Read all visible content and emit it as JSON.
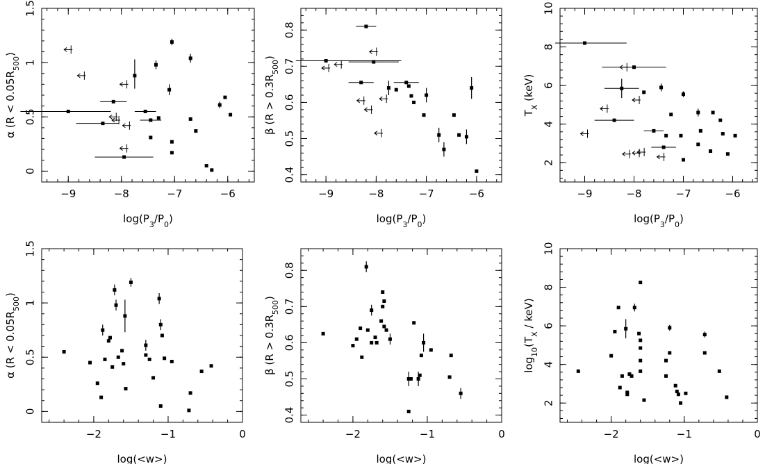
{
  "chart_data": [
    {
      "type": "scatter",
      "panel": "top-left",
      "xlabel": "log(P_3/P_0)",
      "ylabel": "α (R < 0.05R_500)",
      "xlim": [
        -9.5,
        -5.5
      ],
      "ylim": [
        -0.1,
        1.5
      ],
      "xticks": [
        -9,
        -8,
        -7,
        -6
      ],
      "yticks": [
        0,
        0.5,
        1,
        1.5
      ],
      "xtick_labels": [
        "−9",
        "−8",
        "−7",
        "−6"
      ],
      "ytick_labels": [
        "0",
        "0.5",
        "1",
        "1.5"
      ],
      "points": [
        {
          "x": -9.0,
          "y": 0.55,
          "xerr": [
            0.9,
            0.8
          ]
        },
        {
          "x": -8.15,
          "y": 0.64,
          "xerr": [
            0.25,
            0.25
          ]
        },
        {
          "x": -8.35,
          "y": 0.44,
          "xerr": [
            0.5,
            0.3
          ]
        },
        {
          "x": -7.95,
          "y": 0.13,
          "xerr": [
            0.55,
            0.55
          ]
        },
        {
          "x": -7.75,
          "y": 0.88,
          "yerr": [
            0.12,
            0.15
          ]
        },
        {
          "x": -7.55,
          "y": 0.55,
          "xerr": [
            0.2,
            0.2
          ]
        },
        {
          "x": -7.45,
          "y": 0.47,
          "xerr": [
            0.2,
            0.2
          ]
        },
        {
          "x": -7.35,
          "y": 0.98,
          "yerr": [
            0.04,
            0.04
          ]
        },
        {
          "x": -7.3,
          "y": 0.49
        },
        {
          "x": -7.45,
          "y": 0.31
        },
        {
          "x": -7.1,
          "y": 0.75,
          "yerr": [
            0.05,
            0.05
          ]
        },
        {
          "x": -7.05,
          "y": 1.19,
          "yerr": [
            0.03,
            0.03
          ]
        },
        {
          "x": -7.05,
          "y": 0.27
        },
        {
          "x": -7.05,
          "y": 0.17
        },
        {
          "x": -6.7,
          "y": 1.04,
          "yerr": [
            0.04,
            0.04
          ]
        },
        {
          "x": -6.7,
          "y": 0.48
        },
        {
          "x": -6.6,
          "y": 0.37
        },
        {
          "x": -6.4,
          "y": 0.05
        },
        {
          "x": -6.3,
          "y": 0.01
        },
        {
          "x": -6.15,
          "y": 0.61,
          "yerr": [
            0.03,
            0.03
          ]
        },
        {
          "x": -6.05,
          "y": 0.68
        },
        {
          "x": -5.95,
          "y": 0.52
        }
      ],
      "upper_limits": [
        {
          "x": -9.0,
          "y": 1.12
        },
        {
          "x": -8.75,
          "y": 0.88
        },
        {
          "x": -7.95,
          "y": 0.8
        },
        {
          "x": -8.15,
          "y": 0.5
        },
        {
          "x": -8.1,
          "y": 0.47
        },
        {
          "x": -7.9,
          "y": 0.42
        },
        {
          "x": -7.95,
          "y": 0.21
        }
      ]
    },
    {
      "type": "scatter",
      "panel": "top-middle",
      "xlabel": "log(P_3/P_0)",
      "ylabel": "β (R > 0.3R_500)",
      "xlim": [
        -9.5,
        -5.5
      ],
      "ylim": [
        0.38,
        0.86
      ],
      "xticks": [
        -9,
        -8,
        -7,
        -6
      ],
      "yticks": [
        0.4,
        0.5,
        0.6,
        0.7,
        0.8
      ],
      "xtick_labels": [
        "−9",
        "−8",
        "−7",
        "−6"
      ],
      "ytick_labels": [
        "0.4",
        "0.5",
        "0.6",
        "0.7",
        "0.8"
      ],
      "points": [
        {
          "x": -9.0,
          "y": 0.715,
          "xerr": [
            0.6,
            1.5
          ]
        },
        {
          "x": -8.2,
          "y": 0.81,
          "xerr": [
            0.2,
            0.2
          ]
        },
        {
          "x": -8.05,
          "y": 0.712,
          "xerr": [
            0.5,
            0.5
          ]
        },
        {
          "x": -8.3,
          "y": 0.655,
          "xerr": [
            0.25,
            0.25
          ]
        },
        {
          "x": -7.75,
          "y": 0.64,
          "yerr": [
            0.02,
            0.02
          ]
        },
        {
          "x": -7.6,
          "y": 0.635
        },
        {
          "x": -7.4,
          "y": 0.655,
          "xerr": [
            0.25,
            0.25
          ]
        },
        {
          "x": -7.35,
          "y": 0.645
        },
        {
          "x": -7.3,
          "y": 0.618
        },
        {
          "x": -7.25,
          "y": 0.6
        },
        {
          "x": -7.0,
          "y": 0.62,
          "yerr": [
            0.02,
            0.02
          ]
        },
        {
          "x": -7.05,
          "y": 0.565
        },
        {
          "x": -6.75,
          "y": 0.51,
          "yerr": [
            0.02,
            0.02
          ]
        },
        {
          "x": -6.45,
          "y": 0.565
        },
        {
          "x": -6.35,
          "y": 0.51
        },
        {
          "x": -6.2,
          "y": 0.505,
          "yerr": [
            0.02,
            0.02
          ]
        },
        {
          "x": -6.65,
          "y": 0.47,
          "yerr": [
            0.02,
            0.02
          ]
        },
        {
          "x": -6.1,
          "y": 0.64,
          "yerr": [
            0.03,
            0.03
          ]
        },
        {
          "x": -6.0,
          "y": 0.41
        }
      ],
      "upper_limits": [
        {
          "x": -9.0,
          "y": 0.695
        },
        {
          "x": -8.75,
          "y": 0.705
        },
        {
          "x": -8.05,
          "y": 0.74
        },
        {
          "x": -8.3,
          "y": 0.605
        },
        {
          "x": -8.15,
          "y": 0.58
        },
        {
          "x": -7.85,
          "y": 0.61
        },
        {
          "x": -7.95,
          "y": 0.515
        }
      ]
    },
    {
      "type": "scatter",
      "panel": "top-right",
      "xlabel": "log(P_3/P_0)",
      "ylabel": "T_X (keV)",
      "xlim": [
        -9.5,
        -5.5
      ],
      "ylim": [
        1.0,
        10.0
      ],
      "xticks": [
        -9,
        -8,
        -7,
        -6
      ],
      "yticks": [
        2,
        4,
        6,
        8,
        10
      ],
      "xtick_labels": [
        "−9",
        "−8",
        "−7",
        "−6"
      ],
      "ytick_labels": [
        "2",
        "4",
        "6",
        "8",
        "10"
      ],
      "points": [
        {
          "x": -9.0,
          "y": 8.2,
          "xerr": [
            0.6,
            0.85
          ]
        },
        {
          "x": -8.0,
          "y": 6.95,
          "xerr": [
            0.65,
            0.65
          ]
        },
        {
          "x": -8.25,
          "y": 5.85,
          "xerr": [
            0.35,
            0.35
          ],
          "yerr": [
            0.5,
            0.5
          ]
        },
        {
          "x": -8.4,
          "y": 4.2,
          "xerr": [
            0.4,
            0.4
          ]
        },
        {
          "x": -7.8,
          "y": 5.65
        },
        {
          "x": -7.6,
          "y": 3.65,
          "xerr": [
            0.2,
            0.2
          ]
        },
        {
          "x": -7.45,
          "y": 5.9,
          "yerr": [
            0.2,
            0.2
          ]
        },
        {
          "x": -7.4,
          "y": 2.8,
          "xerr": [
            0.25,
            0.25
          ]
        },
        {
          "x": -7.35,
          "y": 3.4
        },
        {
          "x": -7.25,
          "y": 4.5
        },
        {
          "x": -7.05,
          "y": 3.4
        },
        {
          "x": -7.0,
          "y": 5.55,
          "yerr": [
            0.15,
            0.15
          ]
        },
        {
          "x": -7.0,
          "y": 2.15
        },
        {
          "x": -6.7,
          "y": 4.6,
          "yerr": [
            0.2,
            0.2
          ]
        },
        {
          "x": -6.65,
          "y": 3.65
        },
        {
          "x": -6.7,
          "y": 2.95
        },
        {
          "x": -6.45,
          "y": 2.6
        },
        {
          "x": -6.4,
          "y": 4.6
        },
        {
          "x": -6.25,
          "y": 4.2
        },
        {
          "x": -6.2,
          "y": 3.5
        },
        {
          "x": -6.1,
          "y": 2.45
        },
        {
          "x": -5.95,
          "y": 3.4
        }
      ],
      "upper_limits": [
        {
          "x": -9.0,
          "y": 3.5
        },
        {
          "x": -8.6,
          "y": 4.8
        },
        {
          "x": -8.2,
          "y": 6.95
        },
        {
          "x": -7.95,
          "y": 5.25
        },
        {
          "x": -8.15,
          "y": 2.45
        },
        {
          "x": -7.95,
          "y": 2.5
        },
        {
          "x": -7.85,
          "y": 2.55
        },
        {
          "x": -7.45,
          "y": 2.3
        }
      ]
    },
    {
      "type": "scatter",
      "panel": "bottom-left",
      "xlabel": "log(<w>)",
      "ylabel": "α (R < 0.05R_500)",
      "xlim": [
        -2.7,
        0.0
      ],
      "ylim": [
        -0.1,
        1.5
      ],
      "xticks": [
        -2,
        -1,
        0
      ],
      "yticks": [
        0,
        0.5,
        1,
        1.5
      ],
      "xtick_labels": [
        "−2",
        "−1",
        "0"
      ],
      "ytick_labels": [
        "0",
        "0.5",
        "1",
        "1.5"
      ],
      "points": [
        {
          "x": -2.4,
          "y": 0.55
        },
        {
          "x": -2.05,
          "y": 0.45
        },
        {
          "x": -1.95,
          "y": 0.26
        },
        {
          "x": -1.9,
          "y": 0.13
        },
        {
          "x": -1.88,
          "y": 0.75,
          "yerr": [
            0.05,
            0.05
          ]
        },
        {
          "x": -1.85,
          "y": 0.48
        },
        {
          "x": -1.8,
          "y": 0.65
        },
        {
          "x": -1.78,
          "y": 0.68
        },
        {
          "x": -1.75,
          "y": 0.41
        },
        {
          "x": -1.72,
          "y": 1.12,
          "yerr": [
            0.05,
            0.05
          ]
        },
        {
          "x": -1.7,
          "y": 0.98,
          "yerr": [
            0.05,
            0.05
          ]
        },
        {
          "x": -1.67,
          "y": 0.5
        },
        {
          "x": -1.62,
          "y": 0.56
        },
        {
          "x": -1.58,
          "y": 0.88,
          "yerr": [
            0.15,
            0.15
          ]
        },
        {
          "x": -1.6,
          "y": 0.44
        },
        {
          "x": -1.57,
          "y": 0.21
        },
        {
          "x": -1.5,
          "y": 1.19,
          "yerr": [
            0.04,
            0.04
          ]
        },
        {
          "x": -1.3,
          "y": 0.61,
          "yerr": [
            0.05,
            0.05
          ]
        },
        {
          "x": -1.3,
          "y": 0.52
        },
        {
          "x": -1.25,
          "y": 0.48
        },
        {
          "x": -1.2,
          "y": 0.31
        },
        {
          "x": -1.12,
          "y": 1.04,
          "yerr": [
            0.05,
            0.05
          ]
        },
        {
          "x": -1.1,
          "y": 0.8,
          "yerr": [
            0.05,
            0.05
          ]
        },
        {
          "x": -1.08,
          "y": 0.7
        },
        {
          "x": -1.1,
          "y": 0.05
        },
        {
          "x": -1.05,
          "y": 0.49
        },
        {
          "x": -0.95,
          "y": 0.46
        },
        {
          "x": -0.7,
          "y": 0.17
        },
        {
          "x": -0.72,
          "y": 0.01
        },
        {
          "x": -0.55,
          "y": 0.37
        },
        {
          "x": -0.42,
          "y": 0.42
        }
      ]
    },
    {
      "type": "scatter",
      "panel": "bottom-middle",
      "xlabel": "log(<w>)",
      "ylabel": "β (R > 0.3R_500)",
      "xlim": [
        -2.7,
        0.0
      ],
      "ylim": [
        0.38,
        0.86
      ],
      "xticks": [
        -2,
        -1,
        0
      ],
      "yticks": [
        0.4,
        0.5,
        0.6,
        0.7,
        0.8
      ],
      "xtick_labels": [
        "−2",
        "−1",
        "0"
      ],
      "ytick_labels": [
        "0.4",
        "0.5",
        "0.6",
        "0.7",
        "0.8"
      ],
      "points": [
        {
          "x": -2.4,
          "y": 0.625
        },
        {
          "x": -2.0,
          "y": 0.592
        },
        {
          "x": -1.95,
          "y": 0.61
        },
        {
          "x": -1.9,
          "y": 0.64
        },
        {
          "x": -1.88,
          "y": 0.56
        },
        {
          "x": -1.82,
          "y": 0.81,
          "yerr": [
            0.015,
            0.015
          ]
        },
        {
          "x": -1.8,
          "y": 0.635
        },
        {
          "x": -1.75,
          "y": 0.69,
          "yerr": [
            0.015,
            0.015
          ]
        },
        {
          "x": -1.75,
          "y": 0.6
        },
        {
          "x": -1.7,
          "y": 0.615
        },
        {
          "x": -1.68,
          "y": 0.6
        },
        {
          "x": -1.62,
          "y": 0.66
        },
        {
          "x": -1.6,
          "y": 0.7
        },
        {
          "x": -1.58,
          "y": 0.715
        },
        {
          "x": -1.6,
          "y": 0.74
        },
        {
          "x": -1.58,
          "y": 0.645
        },
        {
          "x": -1.55,
          "y": 0.635
        },
        {
          "x": -1.5,
          "y": 0.61,
          "yerr": [
            0.015,
            0.015
          ]
        },
        {
          "x": -1.25,
          "y": 0.5,
          "yerr": [
            0.02,
            0.02
          ]
        },
        {
          "x": -1.22,
          "y": 0.5
        },
        {
          "x": -1.25,
          "y": 0.41
        },
        {
          "x": -1.18,
          "y": 0.655
        },
        {
          "x": -1.12,
          "y": 0.5,
          "yerr": [
            0.02,
            0.02
          ]
        },
        {
          "x": -1.1,
          "y": 0.51
        },
        {
          "x": -1.08,
          "y": 0.565
        },
        {
          "x": -1.05,
          "y": 0.6,
          "yerr": [
            0.025,
            0.025
          ]
        },
        {
          "x": -0.95,
          "y": 0.58
        },
        {
          "x": -0.7,
          "y": 0.505
        },
        {
          "x": -0.68,
          "y": 0.565
        },
        {
          "x": -0.55,
          "y": 0.46,
          "yerr": [
            0.015,
            0.015
          ]
        }
      ]
    },
    {
      "type": "scatter",
      "panel": "bottom-right",
      "xlabel": "log(<w>)",
      "ylabel": "log_10(T_X / keV)",
      "xlim": [
        -2.7,
        0.0
      ],
      "ylim": [
        1.0,
        10.0
      ],
      "xticks": [
        -2,
        -1,
        0
      ],
      "yticks": [
        2,
        4,
        6,
        8,
        10
      ],
      "xtick_labels": [
        "−2",
        "−1",
        "0"
      ],
      "ytick_labels": [
        "2",
        "4",
        "6",
        "8",
        "10"
      ],
      "points": [
        {
          "x": -2.45,
          "y": 3.65
        },
        {
          "x": -2.0,
          "y": 4.45
        },
        {
          "x": -1.95,
          "y": 5.7
        },
        {
          "x": -1.9,
          "y": 6.95
        },
        {
          "x": -1.88,
          "y": 2.8
        },
        {
          "x": -1.85,
          "y": 3.4
        },
        {
          "x": -1.8,
          "y": 5.85,
          "yerr": [
            0.5,
            0.5
          ]
        },
        {
          "x": -1.78,
          "y": 2.45
        },
        {
          "x": -1.78,
          "y": 2.55
        },
        {
          "x": -1.75,
          "y": 3.5
        },
        {
          "x": -1.72,
          "y": 3.4
        },
        {
          "x": -1.68,
          "y": 6.95,
          "yerr": [
            0.2,
            0.2
          ]
        },
        {
          "x": -1.62,
          "y": 5.6
        },
        {
          "x": -1.6,
          "y": 8.25
        },
        {
          "x": -1.6,
          "y": 5.25
        },
        {
          "x": -1.6,
          "y": 4.85
        },
        {
          "x": -1.6,
          "y": 4.2
        },
        {
          "x": -1.6,
          "y": 3.65
        },
        {
          "x": -1.55,
          "y": 2.15
        },
        {
          "x": -1.25,
          "y": 4.2
        },
        {
          "x": -1.25,
          "y": 3.4
        },
        {
          "x": -1.2,
          "y": 5.9,
          "yerr": [
            0.15,
            0.15
          ]
        },
        {
          "x": -1.2,
          "y": 4.6
        },
        {
          "x": -1.12,
          "y": 2.9
        },
        {
          "x": -1.1,
          "y": 2.6
        },
        {
          "x": -1.08,
          "y": 2.45
        },
        {
          "x": -1.05,
          "y": 2.0
        },
        {
          "x": -0.98,
          "y": 2.5
        },
        {
          "x": -0.72,
          "y": 5.55,
          "yerr": [
            0.15,
            0.15
          ]
        },
        {
          "x": -0.72,
          "y": 4.6
        },
        {
          "x": -0.52,
          "y": 3.65
        },
        {
          "x": -0.42,
          "y": 2.3
        }
      ]
    }
  ],
  "colors": {
    "ink": "#000000",
    "background": "#ffffff"
  }
}
